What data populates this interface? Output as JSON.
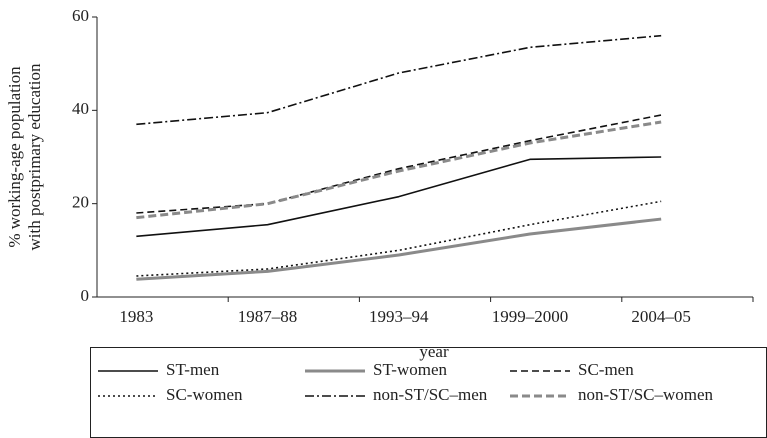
{
  "chart_data": {
    "type": "line",
    "y_label": [
      "% working-age population",
      "with postprimary education"
    ],
    "x_label": "year",
    "categories": [
      "1983",
      "1987–88",
      "1993–94",
      "1999–2000",
      "2004–05"
    ],
    "series": [
      {
        "name": "ST-men",
        "color": "#111111",
        "dash": "none",
        "width": 1.6,
        "values": [
          13,
          15.5,
          21.5,
          29.5,
          30
        ]
      },
      {
        "name": "ST-women",
        "color": "#8a8a8a",
        "dash": "none",
        "width": 3,
        "values": [
          3.8,
          5.5,
          9,
          13.5,
          16.7
        ]
      },
      {
        "name": "SC-men",
        "color": "#111111",
        "dash": "7 4",
        "width": 1.6,
        "values": [
          18,
          20,
          27.5,
          33.5,
          39
        ]
      },
      {
        "name": "SC-women",
        "color": "#111111",
        "dash": "2 3",
        "width": 1.6,
        "values": [
          4.5,
          6,
          10,
          15.5,
          20.5
        ]
      },
      {
        "name": "non-ST/SC–men",
        "color": "#111111",
        "dash": "9 3 2 3",
        "width": 1.6,
        "values": [
          37,
          39.5,
          48,
          53.5,
          56
        ]
      },
      {
        "name": "non-ST/SC–women",
        "color": "#8a8a8a",
        "dash": "8 4",
        "width": 3,
        "values": [
          17,
          20,
          27,
          33,
          37.5
        ]
      }
    ],
    "ylim": [
      0,
      60
    ],
    "yticks": [
      0,
      20,
      40,
      60
    ]
  }
}
